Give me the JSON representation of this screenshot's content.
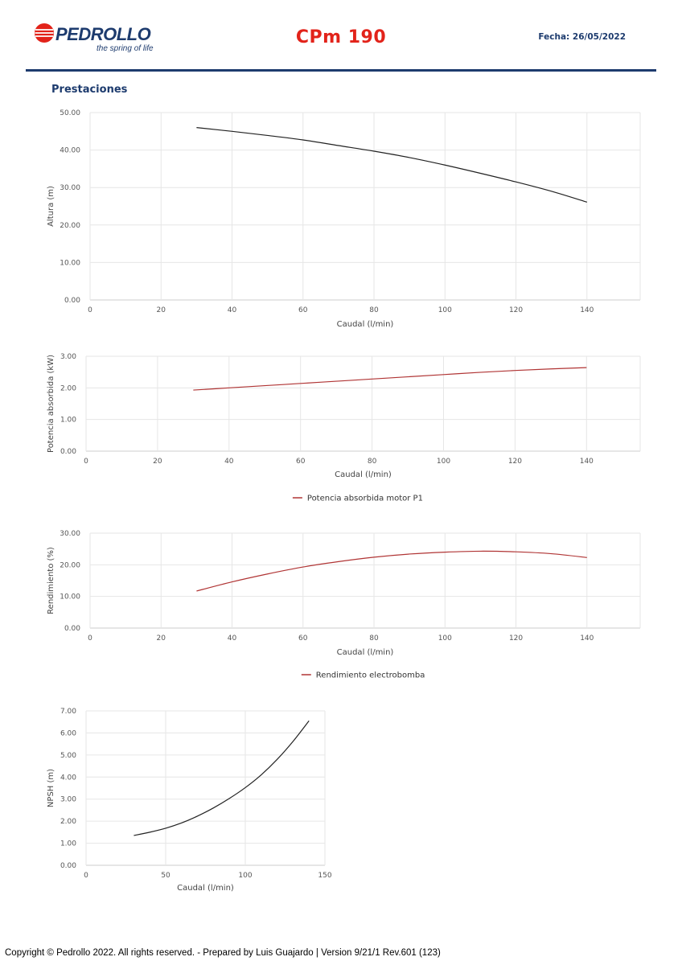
{
  "header": {
    "brand": "PEDROLLO",
    "tagline": "the spring of life",
    "title": "CPm 190",
    "date": "Fecha: 26/05/2022"
  },
  "section_title": "Prestaciones",
  "colors": {
    "brand_blue": "#1d3b6e",
    "brand_red": "#e2231a",
    "curve_dark": "#222222",
    "curve_red": "#b03434",
    "grid": "#e6e6e6"
  },
  "footer": "Copyright © Pedrollo 2022. All rights reserved. - Prepared by Luis Guajardo | Version 9/21/1 Rev.601 (123)",
  "chart_data": [
    {
      "id": "head",
      "type": "line",
      "title": "",
      "xlabel": "Caudal (l/min)",
      "ylabel": "Altura (m)",
      "xlim": [
        0,
        155
      ],
      "ylim": [
        0,
        50
      ],
      "xticks": [
        0,
        20,
        40,
        60,
        80,
        100,
        120,
        140
      ],
      "xtick_labels": [
        "0",
        "20",
        "40",
        "60",
        "80",
        "100",
        "120",
        "140"
      ],
      "yticks": [
        0,
        10,
        20,
        30,
        40,
        50
      ],
      "ytick_labels": [
        "0.00",
        "10.00",
        "20.00",
        "30.00",
        "40.00",
        "50.00"
      ],
      "grid": true,
      "legend": "",
      "series": [
        {
          "color": "#222222",
          "x": [
            30,
            40,
            50,
            60,
            70,
            80,
            90,
            100,
            110,
            120,
            130,
            140
          ],
          "y": [
            46.0,
            45.0,
            43.9,
            42.7,
            41.2,
            39.7,
            38.0,
            36.0,
            33.8,
            31.5,
            29.0,
            26.1
          ]
        }
      ]
    },
    {
      "id": "power",
      "type": "line",
      "title": "",
      "xlabel": "Caudal (l/min)",
      "ylabel": "Potencia absorbida (kW)",
      "xlim": [
        0,
        155
      ],
      "ylim": [
        0,
        3
      ],
      "xticks": [
        0,
        20,
        40,
        60,
        80,
        100,
        120,
        140
      ],
      "xtick_labels": [
        "0",
        "20",
        "40",
        "60",
        "80",
        "100",
        "120",
        "140"
      ],
      "yticks": [
        0,
        1,
        2,
        3
      ],
      "ytick_labels": [
        "0.00",
        "1.00",
        "2.00",
        "3.00"
      ],
      "grid": true,
      "legend": "bottom-center",
      "series": [
        {
          "name": "Potencia absorbida motor P1",
          "color": "#b03434",
          "x": [
            30,
            40,
            50,
            60,
            70,
            80,
            90,
            100,
            110,
            120,
            130,
            140
          ],
          "y": [
            1.93,
            2.0,
            2.07,
            2.14,
            2.21,
            2.28,
            2.35,
            2.42,
            2.49,
            2.55,
            2.6,
            2.64
          ]
        }
      ]
    },
    {
      "id": "efficiency",
      "type": "line",
      "title": "",
      "xlabel": "Caudal (l/min)",
      "ylabel": "Rendimiento (%)",
      "xlim": [
        0,
        155
      ],
      "ylim": [
        0,
        30
      ],
      "xticks": [
        0,
        20,
        40,
        60,
        80,
        100,
        120,
        140
      ],
      "xtick_labels": [
        "0",
        "20",
        "40",
        "60",
        "80",
        "100",
        "120",
        "140"
      ],
      "yticks": [
        0,
        10,
        20,
        30
      ],
      "ytick_labels": [
        "0.00",
        "10.00",
        "20.00",
        "30.00"
      ],
      "grid": true,
      "legend": "bottom-center",
      "series": [
        {
          "name": "Rendimiento electrobomba",
          "color": "#b03434",
          "x": [
            30,
            40,
            50,
            60,
            70,
            80,
            90,
            100,
            110,
            120,
            130,
            140
          ],
          "y": [
            11.7,
            14.6,
            17.1,
            19.3,
            21.0,
            22.4,
            23.4,
            24.0,
            24.3,
            24.1,
            23.5,
            22.3
          ]
        }
      ]
    },
    {
      "id": "npsh",
      "type": "line",
      "title": "",
      "xlabel": "Caudal (l/min)",
      "ylabel": "NPSH (m)",
      "xlim": [
        0,
        150
      ],
      "ylim": [
        0,
        7
      ],
      "xticks": [
        0,
        50,
        100,
        150
      ],
      "xtick_labels": [
        "0",
        "50",
        "100",
        "150"
      ],
      "yticks": [
        0,
        1,
        2,
        3,
        4,
        5,
        6,
        7
      ],
      "ytick_labels": [
        "0.00",
        "1.00",
        "2.00",
        "3.00",
        "4.00",
        "5.00",
        "6.00",
        "7.00"
      ],
      "grid": true,
      "legend": "",
      "series": [
        {
          "color": "#222222",
          "x": [
            30,
            40,
            50,
            60,
            70,
            80,
            90,
            100,
            110,
            120,
            130,
            140
          ],
          "y": [
            1.35,
            1.5,
            1.68,
            1.92,
            2.23,
            2.6,
            3.03,
            3.52,
            4.1,
            4.8,
            5.62,
            6.55
          ]
        }
      ]
    }
  ]
}
